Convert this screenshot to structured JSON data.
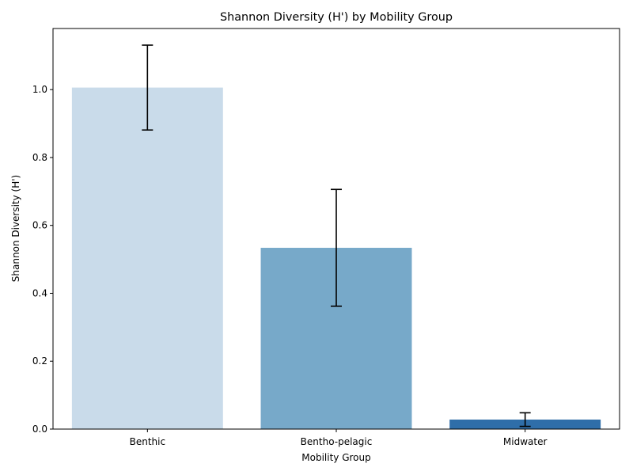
{
  "chart_data": {
    "type": "bar",
    "title": "Shannon Diversity (H') by Mobility Group",
    "xlabel": "Mobility Group",
    "ylabel": "Shannon Diversity (H')",
    "categories": [
      "Benthic",
      "Bentho-pelagic",
      "Midwater"
    ],
    "values": [
      1.006,
      0.534,
      0.028
    ],
    "error": [
      0.125,
      0.172,
      0.02
    ],
    "colors": [
      "#c9dbea",
      "#77a9c9",
      "#2f6ea9"
    ],
    "ylim": [
      0,
      1.18
    ],
    "yticks": [
      0.0,
      0.2,
      0.4,
      0.6,
      0.8,
      1.0
    ],
    "ytick_labels": [
      "0.0",
      "0.2",
      "0.4",
      "0.6",
      "0.8",
      "1.0"
    ],
    "grid": false,
    "legend": "none"
  }
}
